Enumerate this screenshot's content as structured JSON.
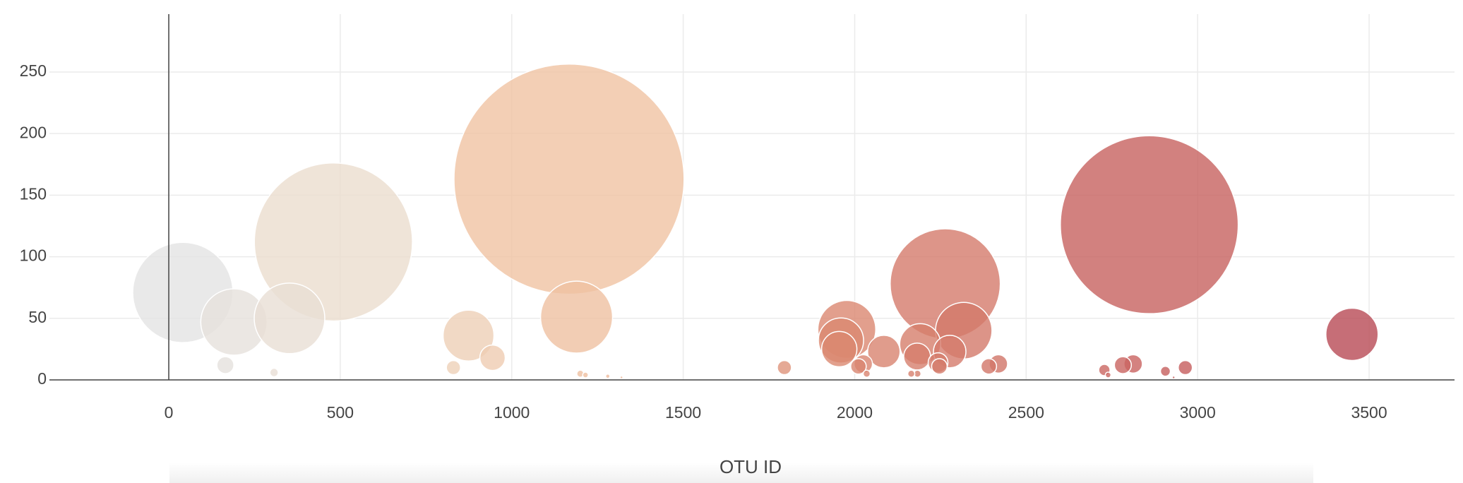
{
  "chart_data": {
    "type": "bubble",
    "x_label": "OTU ID",
    "x": [
      1167,
      2859,
      480,
      2264,
      41,
      1189,
      190,
      352,
      874,
      3450,
      2318,
      1977,
      1960,
      1955,
      2191,
      2085,
      2277,
      2182,
      944,
      2419,
      2243,
      2025,
      165,
      2011,
      2391,
      2247,
      2812,
      2782,
      830,
      1795,
      2964,
      2728,
      2906,
      307,
      1200,
      1215,
      2035,
      2183,
      2165,
      2739,
      1280,
      1320,
      2930
    ],
    "values": [
      163,
      126,
      112,
      78,
      71,
      51,
      47,
      50,
      36,
      37,
      40,
      41,
      32,
      25,
      29,
      23,
      23,
      19,
      18,
      13,
      14,
      13,
      12,
      11,
      11,
      11,
      13,
      12,
      10,
      10,
      10,
      8,
      7,
      6,
      5,
      4,
      5,
      5,
      5,
      4,
      3,
      2,
      2
    ],
    "colorscale": [
      [
        0,
        "#e3e3e3"
      ],
      [
        0.15,
        "#ecdcca"
      ],
      [
        0.33,
        "#f0c3a3"
      ],
      [
        0.55,
        "#dc8a72"
      ],
      [
        0.82,
        "#c8625f"
      ],
      [
        1,
        "#b84a55"
      ]
    ],
    "opacity": 0.8,
    "xlim": [
      -348,
      3749
    ],
    "ylim": [
      0,
      297
    ],
    "xticks": [
      0,
      500,
      1000,
      1500,
      2000,
      2500,
      3000,
      3500
    ],
    "yticks": [
      0,
      50,
      100,
      150,
      200,
      250
    ],
    "grid": true
  }
}
